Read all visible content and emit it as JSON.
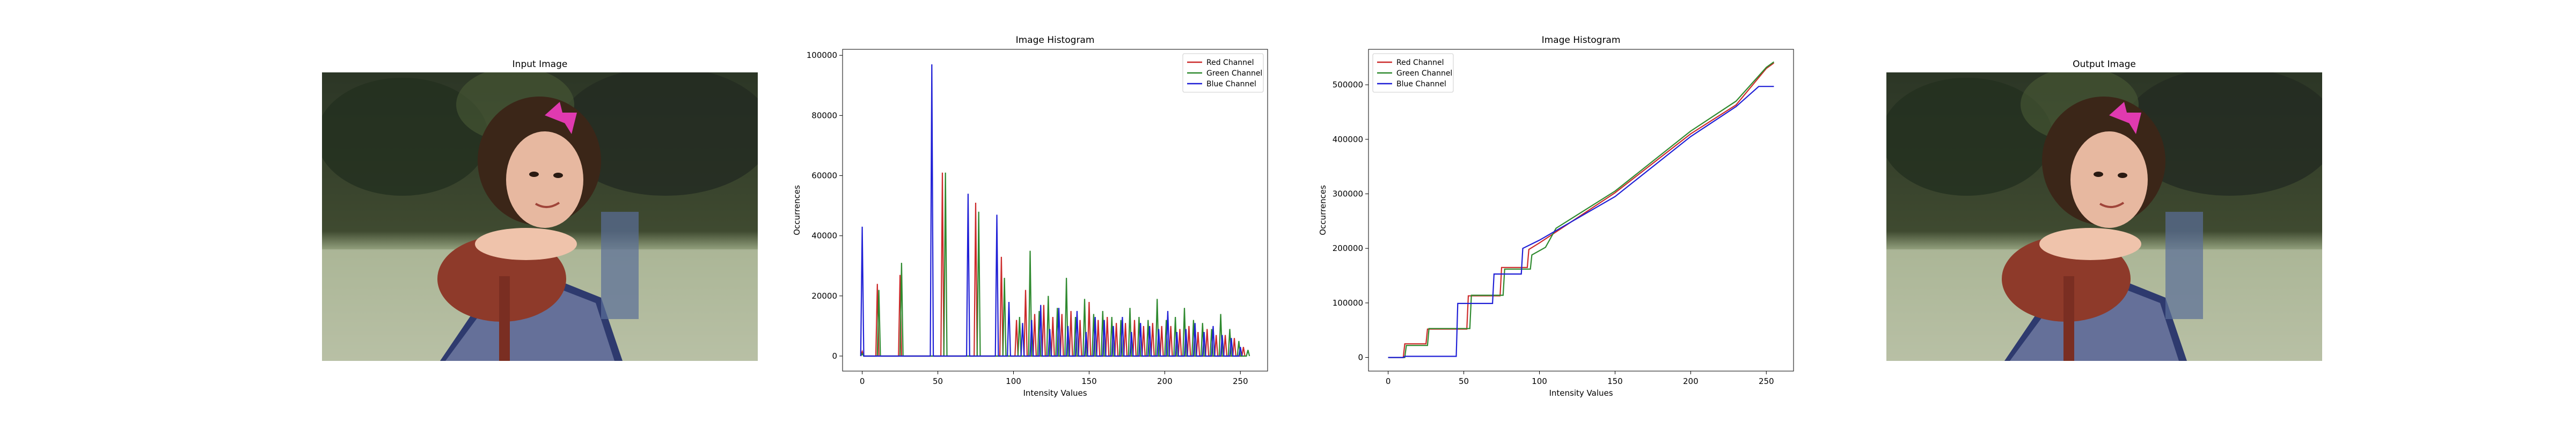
{
  "panels": {
    "input": {
      "title": "Input Image"
    },
    "output": {
      "title": "Output Image"
    }
  },
  "colors": {
    "red": "#cc2a2a",
    "green": "#2f8a2f",
    "blue": "#1f1fd6"
  },
  "chart_data": [
    {
      "type": "line",
      "title": "Image Histogram",
      "xlabel": "Intensity Values",
      "ylabel": "Occurrences",
      "xlim": [
        -13,
        268
      ],
      "ylim": [
        -5000,
        102000
      ],
      "xticks": [
        0,
        50,
        100,
        150,
        200,
        250
      ],
      "yticks": [
        0,
        20000,
        40000,
        60000,
        80000,
        100000
      ],
      "legend": "top-right",
      "series": [
        {
          "name": "Red Channel",
          "color": "red",
          "spikes": [
            [
              0,
              1500
            ],
            [
              10,
              24000
            ],
            [
              25,
              27000
            ],
            [
              53,
              61000
            ],
            [
              75,
              51000
            ],
            [
              92,
              33000
            ],
            [
              102,
              12000
            ],
            [
              108,
              22000
            ],
            [
              114,
              14000
            ],
            [
              120,
              17000
            ],
            [
              126,
              13000
            ],
            [
              132,
              14000
            ],
            [
              138,
              15000
            ],
            [
              144,
              12000
            ],
            [
              150,
              18000
            ],
            [
              156,
              12000
            ],
            [
              162,
              13000
            ],
            [
              168,
              11000
            ],
            [
              174,
              11000
            ],
            [
              180,
              12000
            ],
            [
              186,
              10000
            ],
            [
              192,
              11000
            ],
            [
              198,
              10000
            ],
            [
              204,
              10000
            ],
            [
              210,
              9000
            ],
            [
              216,
              10000
            ],
            [
              222,
              8000
            ],
            [
              228,
              9000
            ],
            [
              234,
              7000
            ],
            [
              240,
              7000
            ],
            [
              246,
              6000
            ],
            [
              252,
              3000
            ]
          ]
        },
        {
          "name": "Green Channel",
          "color": "green",
          "spikes": [
            [
              0,
              800
            ],
            [
              11,
              22000
            ],
            [
              26,
              31000
            ],
            [
              55,
              61000
            ],
            [
              77,
              48000
            ],
            [
              94,
              26000
            ],
            [
              104,
              13000
            ],
            [
              111,
              35000
            ],
            [
              117,
              15000
            ],
            [
              123,
              20000
            ],
            [
              129,
              16000
            ],
            [
              135,
              26000
            ],
            [
              141,
              13000
            ],
            [
              147,
              19000
            ],
            [
              153,
              14000
            ],
            [
              159,
              15000
            ],
            [
              165,
              13000
            ],
            [
              171,
              12000
            ],
            [
              177,
              16000
            ],
            [
              183,
              13000
            ],
            [
              189,
              12000
            ],
            [
              195,
              19000
            ],
            [
              201,
              12000
            ],
            [
              207,
              13000
            ],
            [
              213,
              16000
            ],
            [
              219,
              12000
            ],
            [
              225,
              11000
            ],
            [
              231,
              9000
            ],
            [
              237,
              14000
            ],
            [
              243,
              9000
            ],
            [
              249,
              5000
            ],
            [
              255,
              2000
            ]
          ]
        },
        {
          "name": "Blue Channel",
          "color": "blue",
          "spikes": [
            [
              0,
              43000
            ],
            [
              46,
              97000
            ],
            [
              70,
              54000
            ],
            [
              89,
              47000
            ],
            [
              97,
              18000
            ],
            [
              106,
              11000
            ],
            [
              112,
              12000
            ],
            [
              118,
              17000
            ],
            [
              124,
              9000
            ],
            [
              130,
              16000
            ],
            [
              136,
              10000
            ],
            [
              142,
              15000
            ],
            [
              148,
              8000
            ],
            [
              154,
              13000
            ],
            [
              160,
              12000
            ],
            [
              166,
              10000
            ],
            [
              172,
              13000
            ],
            [
              178,
              8000
            ],
            [
              184,
              11000
            ],
            [
              190,
              10000
            ],
            [
              196,
              9000
            ],
            [
              202,
              15000
            ],
            [
              208,
              8000
            ],
            [
              214,
              9000
            ],
            [
              220,
              11000
            ],
            [
              226,
              8000
            ],
            [
              232,
              10000
            ],
            [
              238,
              7000
            ],
            [
              244,
              6000
            ],
            [
              250,
              3000
            ]
          ]
        }
      ]
    },
    {
      "type": "line",
      "title": "Image Histogram",
      "xlabel": "Intensity Values",
      "ylabel": "Occurrences",
      "xlim": [
        -13,
        268
      ],
      "ylim": [
        -25000,
        565000
      ],
      "xticks": [
        0,
        50,
        100,
        150,
        200,
        250
      ],
      "yticks": [
        0,
        100000,
        200000,
        300000,
        400000,
        500000
      ],
      "legend": "top-left",
      "series": [
        {
          "name": "Red Channel",
          "color": "red",
          "points": [
            [
              0,
              0
            ],
            [
              10,
              0
            ],
            [
              11,
              25000
            ],
            [
              25,
              25000
            ],
            [
              26,
              52000
            ],
            [
              52,
              52000
            ],
            [
              53,
              113000
            ],
            [
              74,
              113000
            ],
            [
              75,
              165000
            ],
            [
              92,
              165000
            ],
            [
              93,
              198000
            ],
            [
              100,
              210000
            ],
            [
              150,
              302000
            ],
            [
              200,
              410000
            ],
            [
              230,
              463000
            ],
            [
              250,
              530000
            ],
            [
              255,
              540000
            ]
          ]
        },
        {
          "name": "Green Channel",
          "color": "green",
          "points": [
            [
              0,
              0
            ],
            [
              11,
              0
            ],
            [
              12,
              22000
            ],
            [
              26,
              22000
            ],
            [
              27,
              53000
            ],
            [
              54,
              53000
            ],
            [
              55,
              114000
            ],
            [
              76,
              114000
            ],
            [
              77,
              162000
            ],
            [
              94,
              162000
            ],
            [
              95,
              188000
            ],
            [
              104,
              202000
            ],
            [
              111,
              237000
            ],
            [
              150,
              305000
            ],
            [
              200,
              415000
            ],
            [
              230,
              470000
            ],
            [
              250,
              532000
            ],
            [
              255,
              542000
            ]
          ]
        },
        {
          "name": "Blue Channel",
          "color": "blue",
          "points": [
            [
              0,
              0
            ],
            [
              10,
              0
            ],
            [
              11,
              2000
            ],
            [
              45,
              2000
            ],
            [
              46,
              99000
            ],
            [
              69,
              99000
            ],
            [
              70,
              153000
            ],
            [
              88,
              153000
            ],
            [
              89,
              200000
            ],
            [
              100,
              215000
            ],
            [
              150,
              295000
            ],
            [
              200,
              405000
            ],
            [
              230,
              460000
            ],
            [
              245,
              497000
            ],
            [
              255,
              497000
            ]
          ]
        }
      ]
    }
  ]
}
